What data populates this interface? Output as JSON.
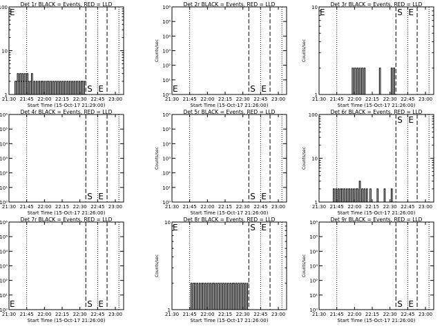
{
  "figure": {
    "background": "#ffffff",
    "foreground": "#000000",
    "tick_labels": [
      "21:30",
      "21:45",
      "22:00",
      "22:15",
      "22:30",
      "22:45",
      "23:00"
    ],
    "vline_markers": [
      {
        "time": "21:45",
        "style": "dotted"
      },
      {
        "time": "22:35",
        "style": "dashed",
        "label": "S"
      },
      {
        "time": "22:45",
        "style": "dotted"
      },
      {
        "time": "22:53",
        "style": "dashed",
        "label": "E"
      },
      {
        "time": "23:03",
        "style": "dotted"
      }
    ]
  },
  "chart_data": [
    {
      "type": "line",
      "title": "Det 1r BLACK = Events, RED = LLD",
      "xlabel": "Start Time (15-Oct-17 21:29:00)",
      "ylabel": "Counts/sec",
      "xlim": [
        "21:30",
        "23:07"
      ],
      "yscale": "log",
      "ylim": [
        1,
        100
      ],
      "ytick_labels": [
        "1",
        "10",
        "100"
      ],
      "marker_labels": {
        "S": "S",
        "E": "E"
      },
      "extra_text": "E",
      "series": [
        {
          "color": "#000000",
          "points": [
            [
              "21:35",
              2
            ],
            [
              "21:36",
              2
            ],
            [
              "21:37",
              3
            ],
            [
              "21:38",
              2
            ],
            [
              "21:39",
              3
            ],
            [
              "21:40",
              2
            ],
            [
              "21:41",
              3
            ],
            [
              "21:42",
              2
            ],
            [
              "21:43",
              3
            ],
            [
              "21:44",
              2
            ],
            [
              "21:45",
              3
            ],
            [
              "21:46",
              2
            ],
            [
              "21:47",
              1
            ],
            [
              "21:48",
              2
            ],
            [
              "21:49",
              3
            ],
            [
              "21:50",
              1
            ],
            [
              "21:51",
              2
            ],
            [
              "21:52",
              1
            ],
            [
              "21:53",
              2
            ],
            [
              "21:54",
              1
            ],
            [
              "21:55",
              2
            ],
            [
              "21:56",
              1
            ],
            [
              "21:57",
              2
            ],
            [
              "21:58",
              2
            ],
            [
              "21:59",
              1
            ],
            [
              "22:00",
              2
            ],
            [
              "22:01",
              1
            ],
            [
              "22:02",
              2
            ],
            [
              "22:03",
              2
            ],
            [
              "22:04",
              1
            ],
            [
              "22:05",
              2
            ],
            [
              "22:06",
              1
            ],
            [
              "22:07",
              2
            ],
            [
              "22:08",
              1
            ],
            [
              "22:09",
              2
            ],
            [
              "22:10",
              1
            ],
            [
              "22:11",
              2
            ],
            [
              "22:12",
              1
            ],
            [
              "22:13",
              2
            ],
            [
              "22:14",
              1
            ],
            [
              "22:15",
              2
            ],
            [
              "22:16",
              1
            ],
            [
              "22:17",
              2
            ],
            [
              "22:18",
              1
            ],
            [
              "22:19",
              2
            ],
            [
              "22:20",
              1
            ],
            [
              "22:21",
              2
            ],
            [
              "22:22",
              1
            ],
            [
              "22:23",
              2
            ],
            [
              "22:24",
              1
            ],
            [
              "22:25",
              2
            ],
            [
              "22:26",
              1
            ],
            [
              "22:27",
              2
            ],
            [
              "22:28",
              1
            ],
            [
              "22:29",
              2
            ],
            [
              "22:30",
              1
            ],
            [
              "22:31",
              2
            ],
            [
              "22:32",
              2
            ],
            [
              "22:33",
              1
            ],
            [
              "22:34",
              2
            ]
          ]
        }
      ]
    },
    {
      "type": "line",
      "title": "Det 2r BLACK = Events, RED = LLD",
      "xlabel": "Start Time (15-Oct-17 21:26:00)",
      "ylabel": "Counts/sec",
      "xlim": [
        "21:30",
        "23:07"
      ],
      "yscale": "log",
      "ylim": [
        1,
        1000000
      ],
      "ytick_labels": [
        "10⁰",
        "10¹",
        "10²",
        "10³",
        "10⁴",
        "10⁵",
        "10⁶"
      ],
      "marker_labels": {
        "S": "S",
        "E": "E"
      },
      "extra_text": "E",
      "series": [
        {
          "color": "#000000",
          "points": []
        }
      ]
    },
    {
      "type": "line",
      "title": "Det 3r BLACK = Events, RED = LLD",
      "xlabel": "Start Time (15-Oct-17 21:26:00)",
      "ylabel": "Counts/sec",
      "xlim": [
        "21:30",
        "23:07"
      ],
      "yscale": "log",
      "ylim": [
        1,
        10
      ],
      "ytick_labels": [
        "1",
        "10"
      ],
      "marker_labels": {
        "S": "S",
        "E": "E"
      },
      "extra_text": "E",
      "series": [
        {
          "color": "#000000",
          "points": [
            [
              "21:57",
              1
            ],
            [
              "21:58",
              2
            ],
            [
              "21:59",
              1
            ],
            [
              "22:00",
              2
            ],
            [
              "22:01",
              1
            ],
            [
              "22:02",
              2
            ],
            [
              "22:03",
              1
            ],
            [
              "22:04",
              2
            ],
            [
              "22:05",
              1
            ],
            [
              "22:06",
              2
            ],
            [
              "22:07",
              1
            ],
            [
              "22:08",
              2
            ],
            [
              "22:09",
              1
            ],
            [
              "22:20",
              1
            ],
            [
              "22:21",
              2
            ],
            [
              "22:22",
              1
            ],
            [
              "22:30",
              1
            ],
            [
              "22:31",
              2
            ],
            [
              "22:32",
              1
            ],
            [
              "22:33",
              2
            ],
            [
              "22:34",
              1
            ]
          ]
        }
      ]
    },
    {
      "type": "line",
      "title": "Det 4r BLACK = Events, RED = LLD",
      "xlabel": "Start Time (15-Oct-17 21:26:00)",
      "ylabel": "Counts/sec",
      "xlim": [
        "21:30",
        "23:07"
      ],
      "yscale": "log",
      "ylim": [
        1,
        1000000
      ],
      "ytick_labels": [
        "10⁰",
        "10¹",
        "10²",
        "10³",
        "10⁴",
        "10⁵",
        "10⁶"
      ],
      "marker_labels": {
        "S": "S",
        "E": "E"
      },
      "extra_text": "",
      "series": [
        {
          "color": "#000000",
          "points": []
        }
      ]
    },
    {
      "type": "line",
      "title": "Det 5r BLACK = Events, RED = LLD",
      "xlabel": "Start Time (15-Oct-17 21:26:00)",
      "ylabel": "Counts/sec",
      "xlim": [
        "21:30",
        "23:07"
      ],
      "yscale": "log",
      "ylim": [
        1,
        1000000
      ],
      "ytick_labels": [
        "10⁰",
        "10¹",
        "10²",
        "10³",
        "10⁴",
        "10⁵",
        "10⁶"
      ],
      "marker_labels": {
        "S": "S",
        "E": "E"
      },
      "extra_text": "",
      "series": [
        {
          "color": "#000000",
          "points": []
        }
      ]
    },
    {
      "type": "line",
      "title": "Det 6r BLACK = Events, RED = LLD",
      "xlabel": "Start Time (15-Oct-17 21:26:00)",
      "ylabel": "Counts/sec",
      "xlim": [
        "21:30",
        "23:07"
      ],
      "yscale": "log",
      "ylim": [
        1,
        100
      ],
      "ytick_labels": [
        "1",
        "10",
        "100"
      ],
      "marker_labels": {
        "S": "S",
        "E": "E"
      },
      "extra_text": "",
      "series": [
        {
          "color": "#000000",
          "points": [
            [
              "21:41",
              1
            ],
            [
              "21:42",
              2
            ],
            [
              "21:43",
              1
            ],
            [
              "21:44",
              2
            ],
            [
              "21:45",
              1
            ],
            [
              "21:46",
              2
            ],
            [
              "21:47",
              1
            ],
            [
              "21:48",
              2
            ],
            [
              "21:49",
              2
            ],
            [
              "21:50",
              1
            ],
            [
              "21:51",
              2
            ],
            [
              "21:52",
              1
            ],
            [
              "21:53",
              2
            ],
            [
              "21:54",
              1
            ],
            [
              "21:55",
              2
            ],
            [
              "21:56",
              1
            ],
            [
              "21:57",
              2
            ],
            [
              "21:58",
              1
            ],
            [
              "21:59",
              2
            ],
            [
              "22:00",
              1
            ],
            [
              "22:01",
              2
            ],
            [
              "22:02",
              2
            ],
            [
              "22:03",
              1
            ],
            [
              "22:04",
              3
            ],
            [
              "22:05",
              1
            ],
            [
              "22:06",
              2
            ],
            [
              "22:07",
              1
            ],
            [
              "22:08",
              2
            ],
            [
              "22:09",
              1
            ],
            [
              "22:10",
              2
            ],
            [
              "22:11",
              1
            ],
            [
              "22:12",
              1
            ],
            [
              "22:13",
              2
            ],
            [
              "22:14",
              1
            ],
            [
              "22:18",
              1
            ],
            [
              "22:19",
              2
            ],
            [
              "22:20",
              1
            ],
            [
              "22:24",
              1
            ],
            [
              "22:25",
              2
            ],
            [
              "22:26",
              1
            ],
            [
              "22:30",
              1
            ],
            [
              "22:31",
              2
            ],
            [
              "22:32",
              1
            ]
          ]
        }
      ]
    },
    {
      "type": "line",
      "title": "Det 7r BLACK = Events, RED = LLD",
      "xlabel": "Start Time (15-Oct-17 21:26:00)",
      "ylabel": "Counts/sec",
      "xlim": [
        "21:30",
        "23:07"
      ],
      "yscale": "log",
      "ylim": [
        1,
        1000000
      ],
      "ytick_labels": [
        "10⁰",
        "10¹",
        "10²",
        "10³",
        "10⁴",
        "10⁵",
        "10⁶"
      ],
      "marker_labels": {
        "S": "S",
        "E": "E"
      },
      "extra_text": "E",
      "series": [
        {
          "color": "#000000",
          "points": []
        }
      ]
    },
    {
      "type": "line",
      "title": "Det 8r BLACK = Events, RED = LLD",
      "xlabel": "Start Time (15-Oct-17 21:26:00)",
      "ylabel": "Counts/sec",
      "xlim": [
        "21:30",
        "23:07"
      ],
      "yscale": "log",
      "ylim": [
        1,
        10
      ],
      "ytick_labels": [
        "1",
        "10"
      ],
      "marker_labels": {
        "S": "S",
        "E": "E"
      },
      "extra_text": "E",
      "series": [
        {
          "color": "#000000",
          "points": [
            [
              "21:45",
              1
            ],
            [
              "21:46",
              2
            ],
            [
              "21:47",
              1
            ],
            [
              "21:48",
              2
            ],
            [
              "21:49",
              2
            ],
            [
              "21:50",
              1
            ],
            [
              "21:51",
              2
            ],
            [
              "21:52",
              1
            ],
            [
              "21:53",
              2
            ],
            [
              "21:54",
              1
            ],
            [
              "21:55",
              2
            ],
            [
              "21:56",
              2
            ],
            [
              "21:57",
              1
            ],
            [
              "21:58",
              2
            ],
            [
              "21:59",
              1
            ],
            [
              "22:00",
              2
            ],
            [
              "22:01",
              1
            ],
            [
              "22:02",
              2
            ],
            [
              "22:03",
              1
            ],
            [
              "22:04",
              2
            ],
            [
              "22:05",
              2
            ],
            [
              "22:06",
              1
            ],
            [
              "22:07",
              2
            ],
            [
              "22:08",
              1
            ],
            [
              "22:09",
              2
            ],
            [
              "22:10",
              1
            ],
            [
              "22:11",
              2
            ],
            [
              "22:12",
              1
            ],
            [
              "22:13",
              2
            ],
            [
              "22:14",
              1
            ],
            [
              "22:15",
              2
            ],
            [
              "22:16",
              1
            ],
            [
              "22:17",
              2
            ],
            [
              "22:18",
              1
            ],
            [
              "22:19",
              2
            ],
            [
              "22:20",
              1
            ],
            [
              "22:21",
              2
            ],
            [
              "22:22",
              2
            ],
            [
              "22:23",
              1
            ],
            [
              "22:24",
              2
            ],
            [
              "22:25",
              1
            ],
            [
              "22:26",
              2
            ],
            [
              "22:27",
              1
            ],
            [
              "22:28",
              2
            ],
            [
              "22:29",
              1
            ],
            [
              "22:30",
              2
            ],
            [
              "22:31",
              1
            ],
            [
              "22:32",
              2
            ],
            [
              "22:33",
              1
            ],
            [
              "22:34",
              2
            ]
          ]
        }
      ]
    },
    {
      "type": "line",
      "title": "Det 9r BLACK = Events, RED = LLD",
      "xlabel": "Start Time (15-Oct-17 21:26:00)",
      "ylabel": "Counts/sec",
      "xlim": [
        "21:30",
        "23:07"
      ],
      "yscale": "log",
      "ylim": [
        1,
        1000000
      ],
      "ytick_labels": [
        "10⁰",
        "10¹",
        "10²",
        "10³",
        "10⁴",
        "10⁵",
        "10⁶"
      ],
      "marker_labels": {
        "S": "S",
        "E": "E"
      },
      "extra_text": "",
      "series": [
        {
          "color": "#000000",
          "points": []
        }
      ]
    }
  ]
}
